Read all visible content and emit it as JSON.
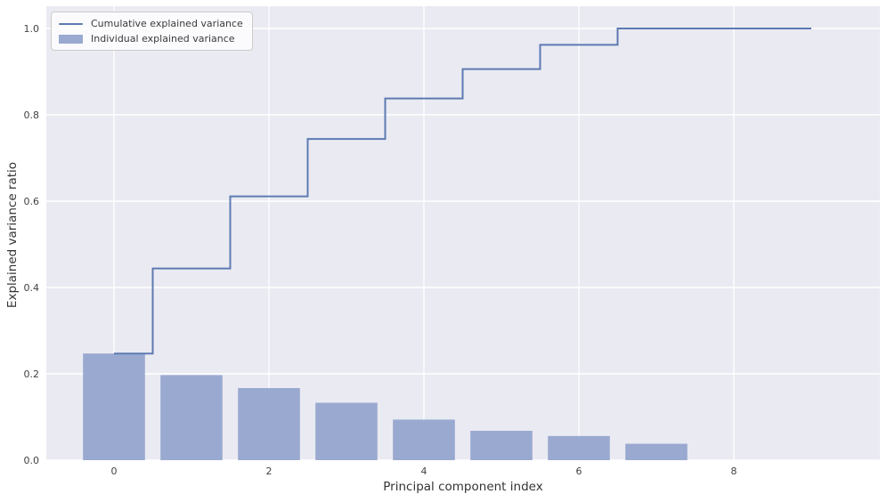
{
  "figure": {
    "background": "#ffffff",
    "plot_background": "#eaeaf2",
    "grid_color": "#ffffff",
    "tick_color": "#424242",
    "label_color": "#333333"
  },
  "chart_data": {
    "type": "bar",
    "title": "",
    "xlabel": "Principal component index",
    "ylabel": "Explained variance ratio",
    "categories": [
      0,
      1,
      2,
      3,
      4,
      5,
      6,
      7,
      8,
      9
    ],
    "series": [
      {
        "name": "Cumulative explained variance",
        "type": "step",
        "step_where": "mid",
        "color": "#5d7ab2",
        "values": [
          0.247,
          0.444,
          0.611,
          0.744,
          0.838,
          0.906,
          0.962,
          1.0,
          1.0,
          1.0
        ]
      },
      {
        "name": "Individual explained variance",
        "type": "bar",
        "color": "#9aa9d0",
        "bar_width": 0.8,
        "values": [
          0.247,
          0.197,
          0.167,
          0.133,
          0.094,
          0.068,
          0.056,
          0.038,
          0.0,
          0.0
        ]
      }
    ],
    "xticks": [
      0,
      2,
      4,
      6,
      8
    ],
    "xticklabels": [
      "0",
      "2",
      "4",
      "6",
      "8"
    ],
    "yticks": [
      0.0,
      0.2,
      0.4,
      0.6,
      0.8,
      1.0
    ],
    "yticklabels": [
      "0.0",
      "0.2",
      "0.4",
      "0.6",
      "0.8",
      "1.0"
    ],
    "xlim": [
      -0.89,
      9.89
    ],
    "ylim": [
      0.0,
      1.051
    ],
    "grid": true,
    "legend_position": "upper left"
  },
  "legend": {
    "items": [
      {
        "label": "Cumulative explained variance",
        "swatch": "line"
      },
      {
        "label": "Individual explained variance",
        "swatch": "bar"
      }
    ]
  }
}
